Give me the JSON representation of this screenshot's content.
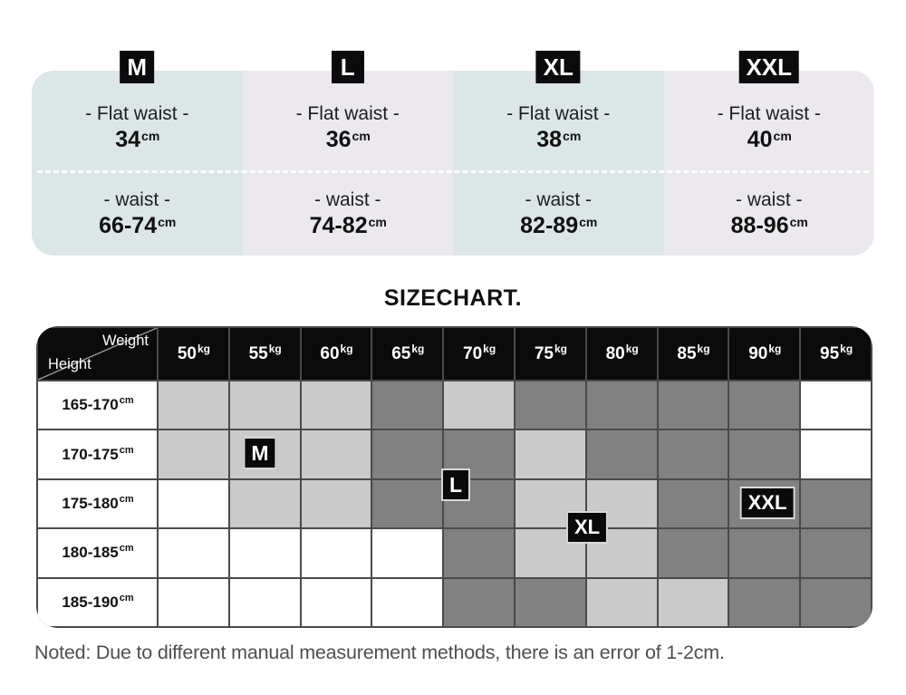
{
  "size_panels": {
    "columns": [
      {
        "size": "M",
        "bg": "#dde6e7",
        "flat_waist_label": "- Flat waist -",
        "flat_waist_value": "34",
        "waist_label": "- waist -",
        "waist_value": "66-74",
        "unit": "cm"
      },
      {
        "size": "L",
        "bg": "#ebe9ee",
        "flat_waist_label": "- Flat waist -",
        "flat_waist_value": "36",
        "waist_label": "- waist -",
        "waist_value": "74-82",
        "unit": "cm"
      },
      {
        "size": "XL",
        "bg": "#dde6e7",
        "flat_waist_label": "- Flat waist -",
        "flat_waist_value": "38",
        "waist_label": "- waist -",
        "waist_value": "82-89",
        "unit": "cm"
      },
      {
        "size": "XXL",
        "bg": "#ebe9ee",
        "flat_waist_label": "- Flat waist -",
        "flat_waist_value": "40",
        "waist_label": "- waist -",
        "waist_value": "88-96",
        "unit": "cm"
      }
    ]
  },
  "title": "SIZECHART.",
  "table": {
    "corner": {
      "top_label": "Weight",
      "bottom_label": "Height"
    },
    "weight_unit": "kg",
    "height_unit": "cm",
    "weight_columns": [
      "50",
      "55",
      "60",
      "65",
      "70",
      "75",
      "80",
      "85",
      "90",
      "95"
    ],
    "rows": [
      {
        "height": "165-170",
        "cells": [
          "light",
          "light",
          "light",
          "dark",
          "light",
          "dark",
          "dark",
          "dark",
          "dark",
          "white"
        ]
      },
      {
        "height": "170-175",
        "cells": [
          "light",
          "light",
          "light",
          "dark",
          "dark",
          "light",
          "dark",
          "dark",
          "dark",
          "white"
        ]
      },
      {
        "height": "175-180",
        "cells": [
          "white",
          "light",
          "light",
          "dark",
          "dark",
          "light",
          "light",
          "dark",
          "dark",
          "dark"
        ]
      },
      {
        "height": "180-185",
        "cells": [
          "white",
          "white",
          "white",
          "white",
          "dark",
          "light",
          "light",
          "dark",
          "dark",
          "dark"
        ]
      },
      {
        "height": "185-190",
        "cells": [
          "white",
          "white",
          "white",
          "white",
          "dark",
          "dark",
          "light",
          "light",
          "dark",
          "dark"
        ]
      }
    ],
    "badges": [
      {
        "label": "M"
      },
      {
        "label": "L"
      },
      {
        "label": "XL"
      },
      {
        "label": "XXL"
      }
    ],
    "colors": {
      "white": "#ffffff",
      "light": "#cacaca",
      "dark": "#818181",
      "header_bg": "#0b0b0b",
      "grid": "#4a4a4a"
    }
  },
  "note": "Noted: Due to different manual measurement methods, there is an error of 1-2cm.",
  "chart_data": {
    "type": "heatmap",
    "title": "SIZECHART.",
    "x_label": "Weight",
    "y_label": "Height",
    "x_categories": [
      "50kg",
      "55kg",
      "60kg",
      "65kg",
      "70kg",
      "75kg",
      "80kg",
      "85kg",
      "90kg",
      "95kg"
    ],
    "y_categories": [
      "165-170cm",
      "170-175cm",
      "175-180cm",
      "180-185cm",
      "185-190cm"
    ],
    "cell_shades": [
      [
        "light",
        "light",
        "light",
        "dark",
        "light",
        "dark",
        "dark",
        "dark",
        "dark",
        "white"
      ],
      [
        "light",
        "light",
        "light",
        "dark",
        "dark",
        "light",
        "dark",
        "dark",
        "dark",
        "white"
      ],
      [
        "white",
        "light",
        "light",
        "dark",
        "dark",
        "light",
        "light",
        "dark",
        "dark",
        "dark"
      ],
      [
        "white",
        "white",
        "white",
        "white",
        "dark",
        "light",
        "light",
        "dark",
        "dark",
        "dark"
      ],
      [
        "white",
        "white",
        "white",
        "white",
        "dark",
        "dark",
        "light",
        "light",
        "dark",
        "dark"
      ]
    ],
    "size_markers": [
      {
        "size": "M",
        "weight": "55kg",
        "height": "170-175cm"
      },
      {
        "size": "L",
        "weight": "70kg",
        "height": "between 170-175cm and 175-180cm"
      },
      {
        "size": "XL",
        "weight": "between 75kg and 80kg",
        "height": "between 175-180cm and 180-185cm"
      },
      {
        "size": "XXL",
        "weight": "90kg",
        "height": "175-180cm"
      }
    ],
    "sizes": [
      {
        "size": "M",
        "flat_waist_cm": 34,
        "waist_cm": "66-74"
      },
      {
        "size": "L",
        "flat_waist_cm": 36,
        "waist_cm": "74-82"
      },
      {
        "size": "XL",
        "flat_waist_cm": 38,
        "waist_cm": "82-89"
      },
      {
        "size": "XXL",
        "flat_waist_cm": 40,
        "waist_cm": "88-96"
      }
    ]
  }
}
